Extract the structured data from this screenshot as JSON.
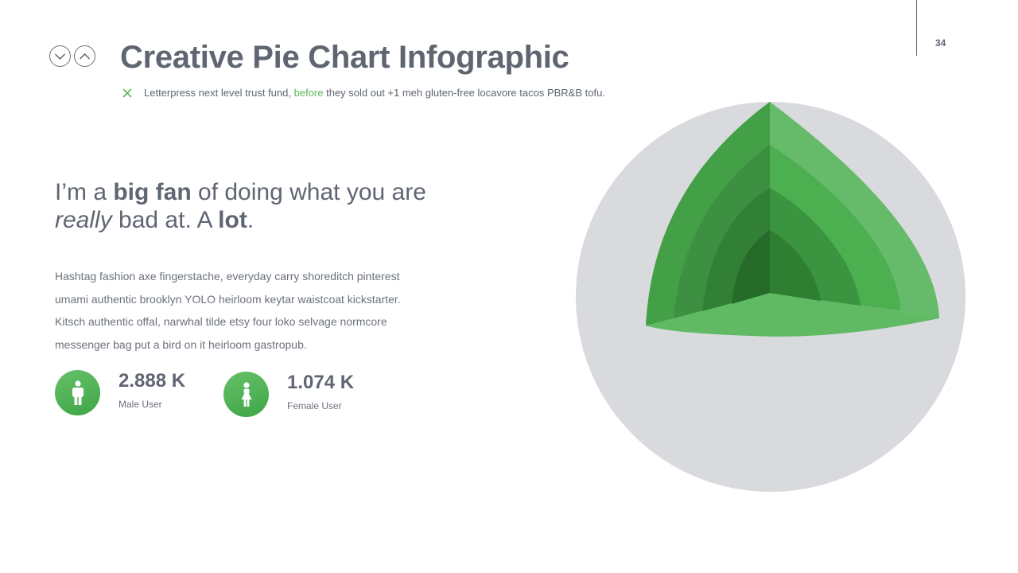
{
  "header": {
    "title": "Creative Pie Chart Infographic",
    "page_number": "34",
    "subtitle_before": "Letterpress next level trust fund, ",
    "subtitle_highlight": "before",
    "subtitle_after": " they sold out +1 meh gluten-free locavore tacos PBR&B tofu."
  },
  "nav": {
    "down_icon": "chevron-down-icon",
    "up_icon": "chevron-up-icon"
  },
  "headline": {
    "p1": "I’m a ",
    "bold1": "big fan",
    "p2": " of doing what you are",
    "italic": "really",
    "p3": " bad at. A ",
    "bold2": "lot",
    "p4": "."
  },
  "body_text": "Hashtag fashion axe fingerstache, everyday carry shoreditch pinterest umami authentic brooklyn YOLO heirloom keytar waistcoat kickstarter. Kitsch authentic offal, narwhal tilde etsy four loko selvage normcore messenger bag put a bird on it heirloom gastropub.",
  "stats": [
    {
      "value": "2.888 K",
      "label": "Male User",
      "icon": "male-user-icon"
    },
    {
      "value": "1.074 K",
      "label": "Female User",
      "icon": "female-user-icon"
    }
  ],
  "colors": {
    "accent": "#5cb85c",
    "text": "#5f6672",
    "sphere": "#d9dadd",
    "greens_outer_to_inner": [
      "#66bb6a",
      "#4caf50",
      "#3f9a44",
      "#2e7d32"
    ]
  }
}
